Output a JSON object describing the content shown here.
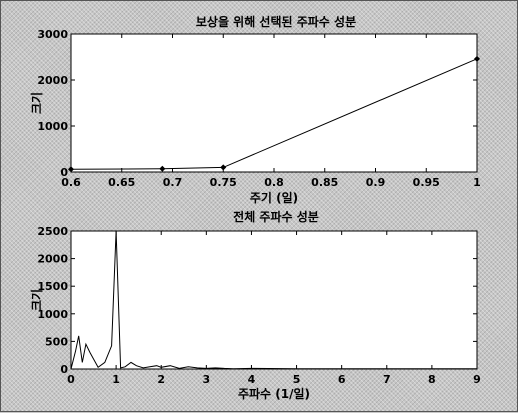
{
  "chart_data": [
    {
      "type": "line",
      "title": "보상을 위해 선택된 주파수 성분",
      "xlabel": "주기 (일)",
      "ylabel": "크기",
      "xlim": [
        0.6,
        1.0
      ],
      "ylim": [
        0,
        3000
      ],
      "xticks": [
        0.6,
        0.65,
        0.7,
        0.75,
        0.8,
        0.85,
        0.9,
        0.95,
        1.0
      ],
      "xtick_labels": [
        "0.6",
        "0.65",
        "0.7",
        "0.75",
        "0.8",
        "0.85",
        "0.9",
        "0.95",
        "1"
      ],
      "yticks": [
        0,
        1000,
        2000,
        3000
      ],
      "ytick_labels": [
        "0",
        "1000",
        "2000",
        "3000"
      ],
      "x": [
        0.6,
        0.69,
        0.75,
        1.0
      ],
      "y": [
        60,
        70,
        100,
        2460
      ],
      "markers": true
    },
    {
      "type": "line",
      "title": "전체 주파수 성분",
      "xlabel": "주파수 (1/일)",
      "ylabel": "크기",
      "xlim": [
        0,
        9
      ],
      "ylim": [
        0,
        2500
      ],
      "xticks": [
        0,
        1,
        2,
        3,
        4,
        5,
        6,
        7,
        8,
        9
      ],
      "xtick_labels": [
        "0",
        "1",
        "2",
        "3",
        "4",
        "5",
        "6",
        "7",
        "8",
        "9"
      ],
      "yticks": [
        0,
        500,
        1000,
        1500,
        2000,
        2500
      ],
      "ytick_labels": [
        "0",
        "500",
        "1000",
        "1500",
        "2000",
        "2500"
      ],
      "x": [
        0,
        0.1,
        0.17,
        0.25,
        0.33,
        0.42,
        0.5,
        0.6,
        0.75,
        0.9,
        1.0,
        1.1,
        1.2,
        1.33,
        1.45,
        1.6,
        1.75,
        1.9,
        2.0,
        2.2,
        2.4,
        2.6,
        2.8,
        3.0,
        3.2,
        3.4,
        3.6,
        4.0,
        5.0,
        6.0,
        7.0,
        8.0,
        9.0
      ],
      "y": [
        0,
        320,
        600,
        120,
        450,
        300,
        180,
        30,
        120,
        420,
        2500,
        20,
        40,
        120,
        60,
        20,
        40,
        60,
        30,
        60,
        10,
        40,
        20,
        10,
        20,
        10,
        5,
        10,
        5,
        5,
        5,
        5,
        5
      ],
      "markers": false
    }
  ]
}
